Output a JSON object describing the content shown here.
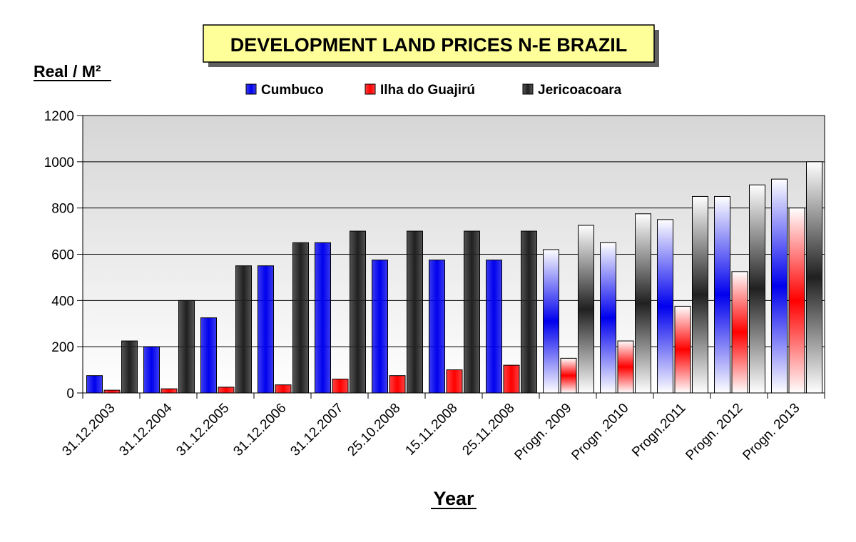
{
  "chart_data": {
    "type": "bar",
    "title": "DEVELOPMENT LAND PRICES N-E BRAZIL",
    "ylabel": "Real / M²",
    "xlabel": "Year",
    "ylim": [
      0,
      1200
    ],
    "yticks": [
      0,
      200,
      400,
      600,
      800,
      1000,
      1200
    ],
    "grid": true,
    "legend_position": "top",
    "categories": [
      "31.12.2003",
      "31.12.2004",
      "31.12.2005",
      "31.12.2006",
      "31.12.2007",
      "25.10.2008",
      "15.11.2008",
      "25.11.2008",
      "Progn. 2009",
      "Progn .2010",
      "Progn.2011",
      "Progn. 2012",
      "Progn. 2013"
    ],
    "forecast_from_index": 8,
    "series": [
      {
        "name": "Cumbuco",
        "color": "#0000ee",
        "values": [
          75,
          200,
          325,
          550,
          650,
          575,
          575,
          575,
          620,
          650,
          750,
          850,
          925
        ]
      },
      {
        "name": "Ilha do Guajirú",
        "color": "#ff0000",
        "values": [
          12,
          18,
          25,
          35,
          60,
          75,
          100,
          120,
          150,
          225,
          375,
          525,
          800
        ]
      },
      {
        "name": "Jericoacoara",
        "color": "#202020",
        "values": [
          225,
          400,
          550,
          650,
          700,
          700,
          700,
          700,
          725,
          775,
          850,
          900,
          1000
        ]
      }
    ]
  }
}
